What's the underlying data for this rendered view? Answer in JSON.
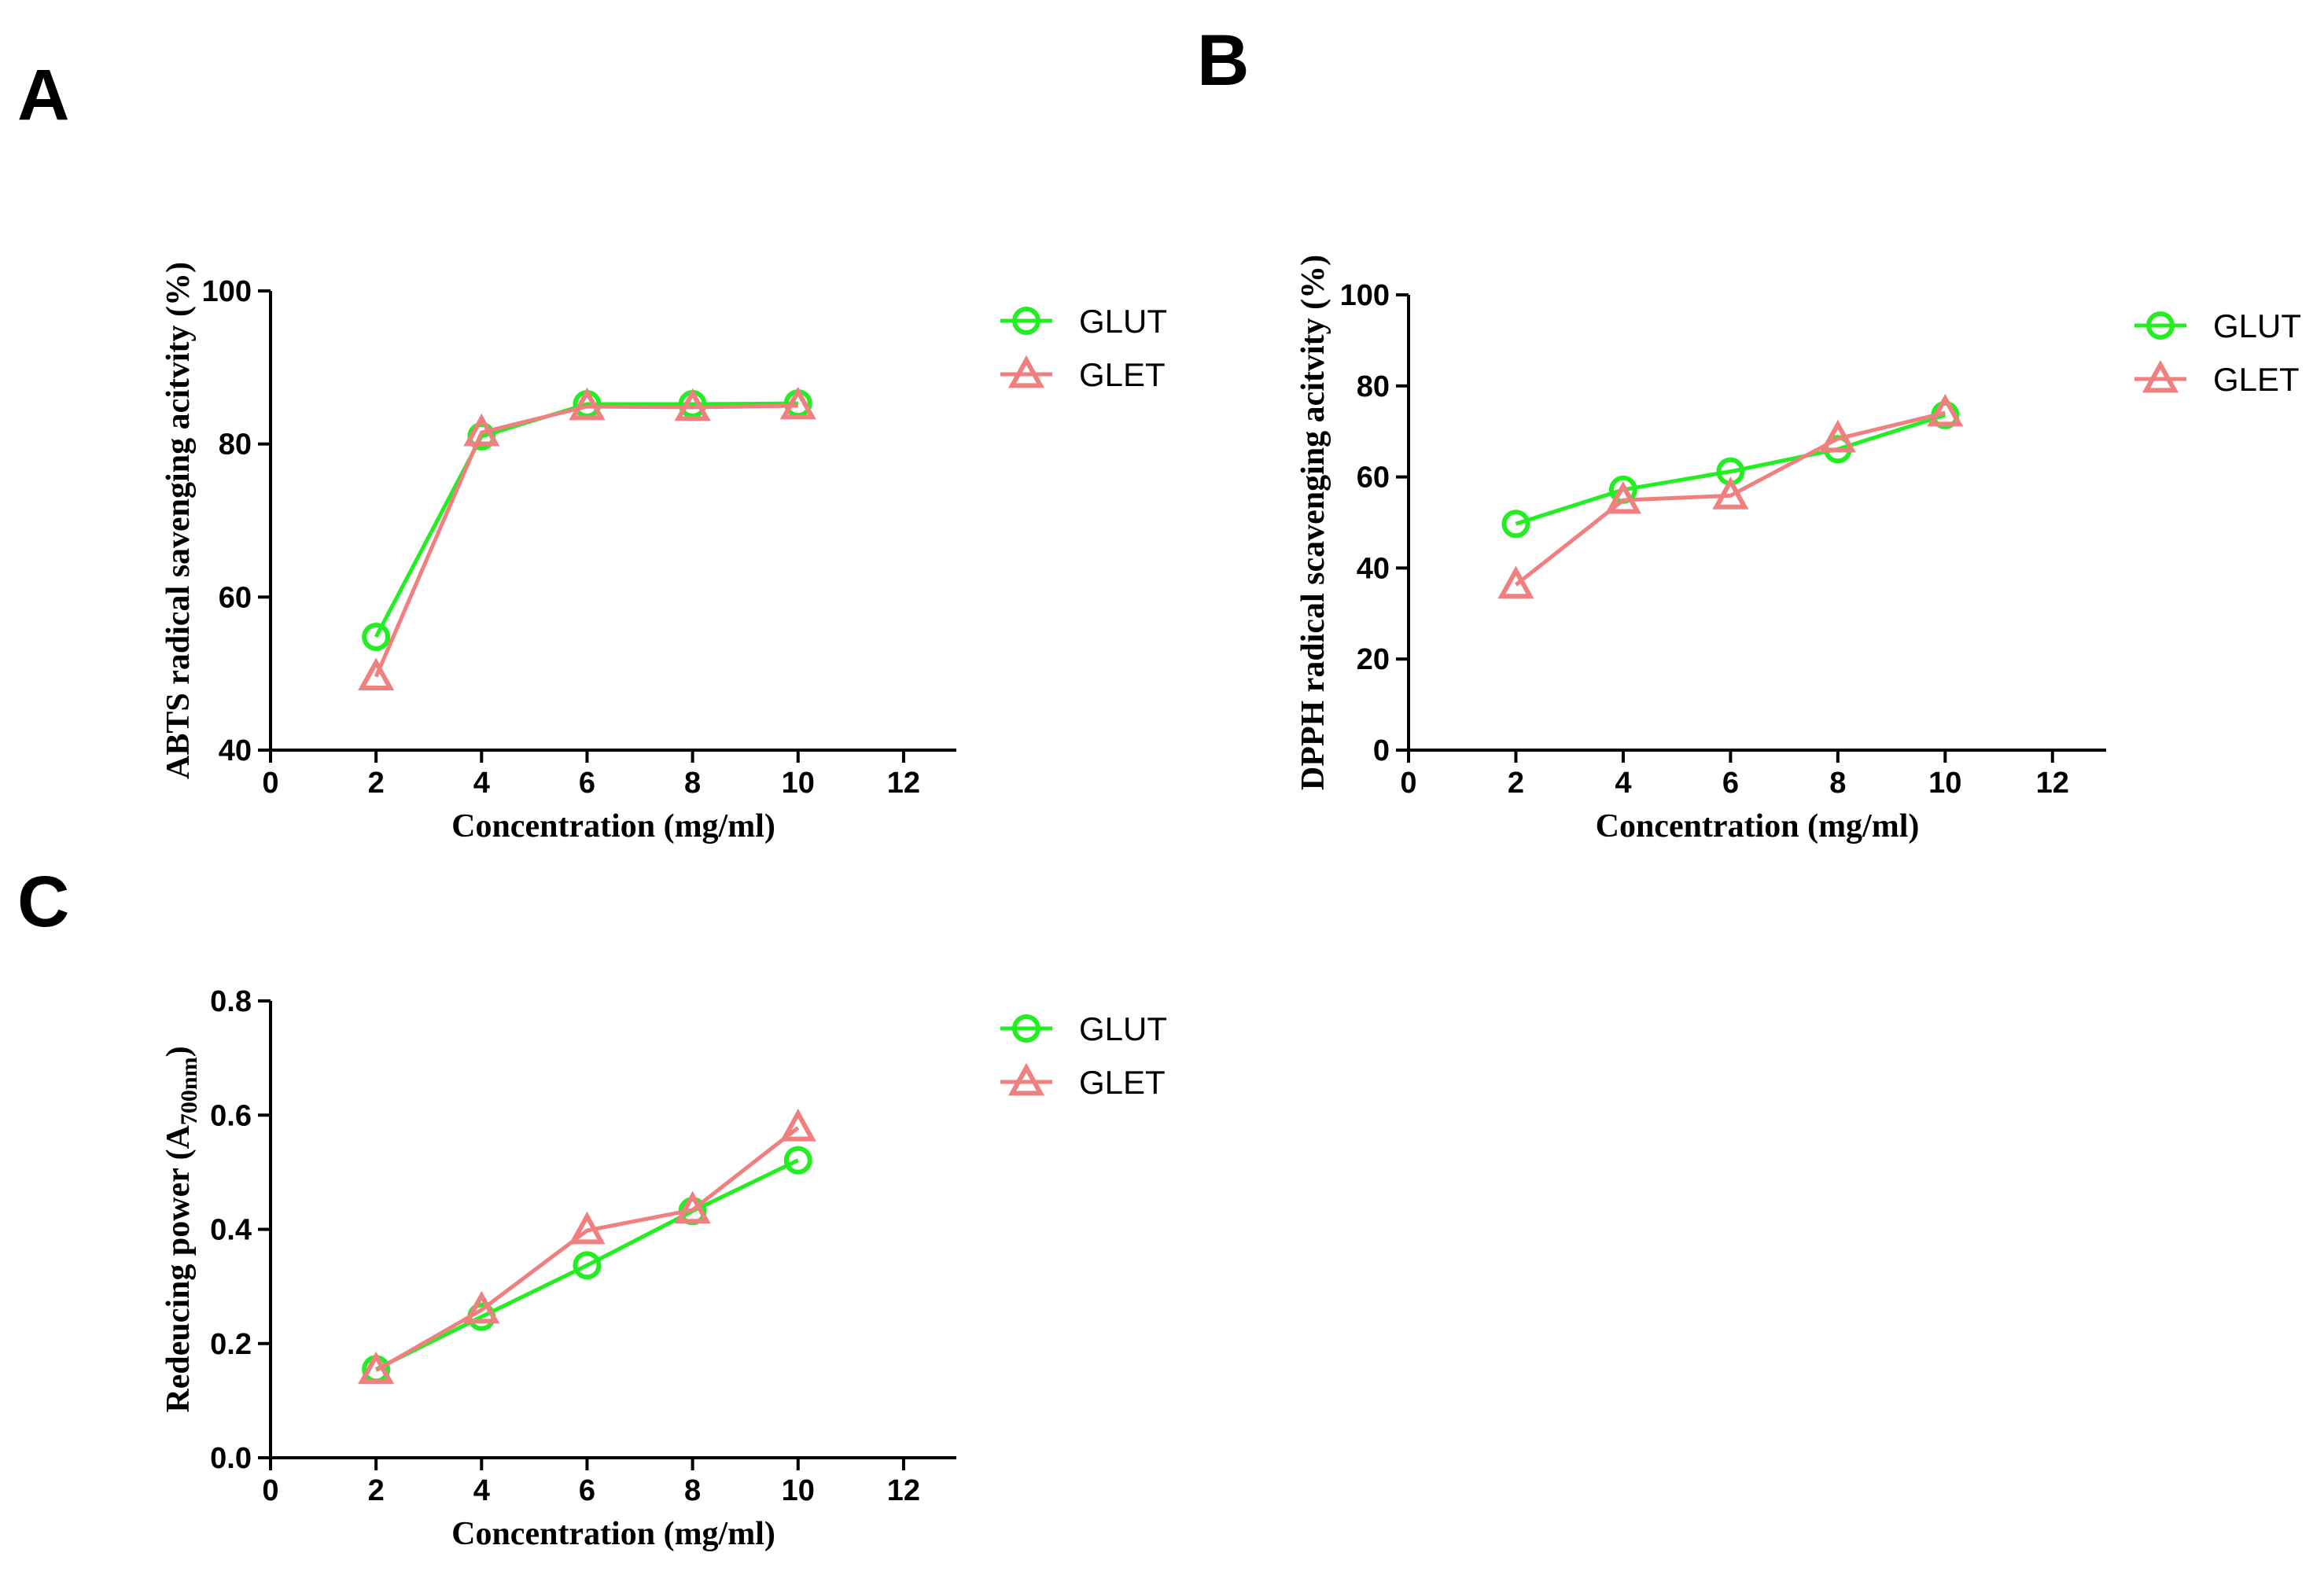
{
  "panel_labels": [
    "A",
    "B",
    "C"
  ],
  "colors": {
    "GLUT": "#22ee22",
    "GLET": "#f08080"
  },
  "chart_data": [
    {
      "panel": "A",
      "type": "line",
      "title": "",
      "xlabel": "Concentration (mg/ml)",
      "ylabel": "ABTS radical savenging acitvity (%)",
      "xlim": [
        0,
        13
      ],
      "ylim": [
        40,
        100
      ],
      "xticks": [
        0,
        2,
        4,
        6,
        8,
        10,
        12
      ],
      "yticks": [
        40,
        60,
        80,
        100
      ],
      "legend": "right",
      "grid": false,
      "series": [
        {
          "name": "GLUT",
          "marker": "circle",
          "x": [
            2,
            4,
            6,
            8,
            10
          ],
          "y": [
            54.8,
            81.0,
            85.2,
            85.2,
            85.3
          ]
        },
        {
          "name": "GLET",
          "marker": "triangle",
          "x": [
            2,
            4,
            6,
            8,
            10
          ],
          "y": [
            49.6,
            81.5,
            84.9,
            84.8,
            85.0
          ]
        }
      ]
    },
    {
      "panel": "B",
      "type": "line",
      "title": "",
      "xlabel": "Concentration (mg/ml)",
      "ylabel": "DPPH radical scavenging acitvity (%)",
      "xlim": [
        0,
        13
      ],
      "ylim": [
        0,
        100
      ],
      "xticks": [
        0,
        2,
        4,
        6,
        8,
        10,
        12
      ],
      "yticks": [
        0,
        20,
        40,
        60,
        80,
        100
      ],
      "legend": "right",
      "grid": false,
      "series": [
        {
          "name": "GLUT",
          "marker": "circle",
          "x": [
            2,
            4,
            6,
            8,
            10
          ],
          "y": [
            49.7,
            57.2,
            61.2,
            66.1,
            73.6
          ]
        },
        {
          "name": "GLET",
          "marker": "triangle",
          "x": [
            2,
            4,
            6,
            8,
            10
          ],
          "y": [
            36.3,
            54.9,
            55.9,
            68.4,
            74.1
          ]
        }
      ]
    },
    {
      "panel": "C",
      "type": "line",
      "title": "",
      "xlabel": "Concentration (mg/ml)",
      "ylabel": "Redeucing power (A",
      "ylabel_sub": "700nm",
      "ylabel_end": ")",
      "xlim": [
        0,
        13
      ],
      "ylim": [
        0.0,
        0.8
      ],
      "xticks": [
        0,
        2,
        4,
        6,
        8,
        10,
        12
      ],
      "yticks": [
        0.0,
        0.2,
        0.4,
        0.6,
        0.8
      ],
      "ytick_labels": [
        "0.0",
        "0.2",
        "0.4",
        "0.6",
        "0.8"
      ],
      "legend": "right",
      "grid": false,
      "series": [
        {
          "name": "GLUT",
          "marker": "circle",
          "x": [
            2,
            4,
            6,
            8,
            10
          ],
          "y": [
            0.155,
            0.247,
            0.337,
            0.432,
            0.521
          ]
        },
        {
          "name": "GLET",
          "marker": "triangle",
          "x": [
            2,
            4,
            6,
            8,
            10
          ],
          "y": [
            0.153,
            0.259,
            0.398,
            0.434,
            0.578
          ]
        }
      ]
    }
  ]
}
